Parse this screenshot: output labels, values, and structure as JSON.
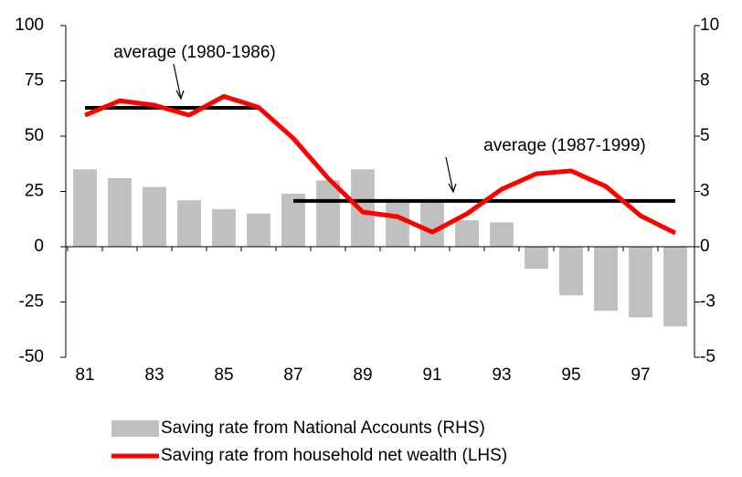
{
  "chart_data": {
    "type": "bar+line",
    "categories": [
      "81",
      null,
      "83",
      null,
      "85",
      null,
      "87",
      null,
      "89",
      null,
      "91",
      null,
      "93",
      null,
      "95",
      null,
      "97",
      null
    ],
    "series": [
      {
        "name": "Saving rate from National Accounts (RHS)",
        "type": "bar",
        "axis": "y2",
        "color": "#c0c0c0",
        "values": [
          3.5,
          3.1,
          2.7,
          2.1,
          1.7,
          1.5,
          2.4,
          3.0,
          3.5,
          2.0,
          2.0,
          1.2,
          1.1,
          -1.0,
          -2.2,
          -2.9,
          -3.2,
          -3.6
        ]
      },
      {
        "name": "Saving rate from household net wealth (LHS)",
        "type": "line",
        "axis": "y",
        "color": "#ff0000",
        "values": [
          59.5,
          66,
          64,
          59.5,
          68,
          63,
          49,
          31,
          15.7,
          13.6,
          6.6,
          14.9,
          26,
          33,
          34.3,
          27.3,
          14,
          6.2
        ]
      }
    ],
    "annotations": [
      {
        "label": "average (1980-1986)",
        "value": 62.8
      },
      {
        "label": "average (1987-1999)",
        "value": 20.7
      }
    ],
    "ylim": [
      -50,
      100
    ],
    "yticks": [
      -50,
      -25,
      0,
      25,
      50,
      75,
      100
    ],
    "y2lim": [
      -5,
      10
    ],
    "y2ticks": [
      -5,
      {
        "value": -2.5,
        "label": "-3"
      },
      0,
      {
        "value": 2.5,
        "label": "3"
      },
      5,
      {
        "value": 7.5,
        "label": "8"
      },
      10
    ],
    "legend": "bottom"
  }
}
